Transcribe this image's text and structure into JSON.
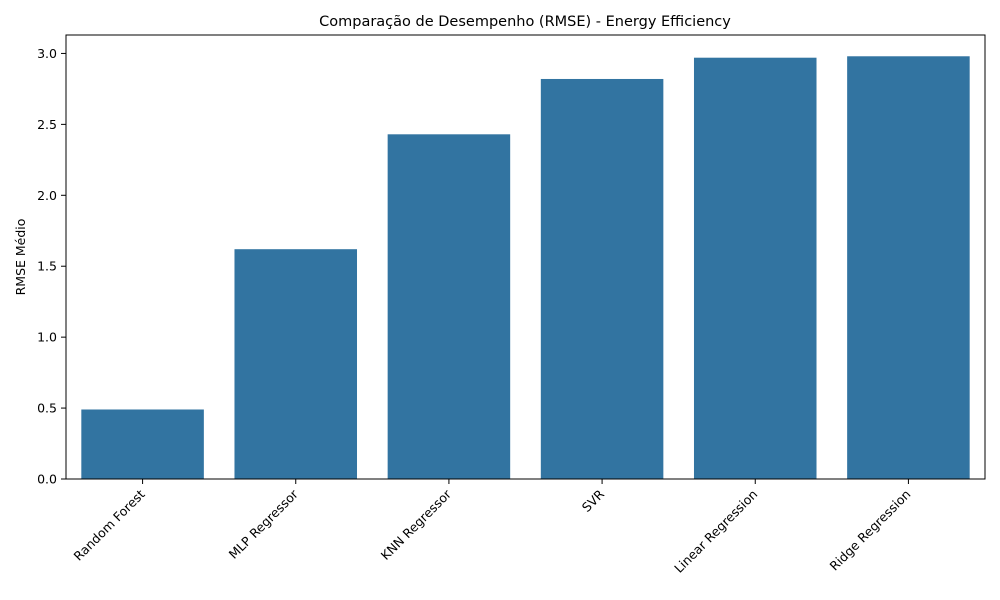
{
  "chart_data": {
    "type": "bar",
    "title": "Comparação de Desempenho (RMSE) - Energy Efficiency",
    "xlabel": "",
    "ylabel": "RMSE Médio",
    "categories": [
      "Random Forest",
      "MLP Regressor",
      "KNN Regressor",
      "SVR",
      "Linear Regression",
      "Ridge Regression"
    ],
    "values": [
      0.49,
      1.62,
      2.43,
      2.82,
      2.97,
      2.98
    ],
    "ylim": [
      0,
      3.13
    ],
    "yticks": [
      0.0,
      0.5,
      1.0,
      1.5,
      2.0,
      2.5,
      3.0
    ],
    "ytick_labels": [
      "0.0",
      "0.5",
      "1.0",
      "1.5",
      "2.0",
      "2.5",
      "3.0"
    ],
    "bar_color": "#3274a1",
    "grid": false,
    "legend": "none"
  }
}
